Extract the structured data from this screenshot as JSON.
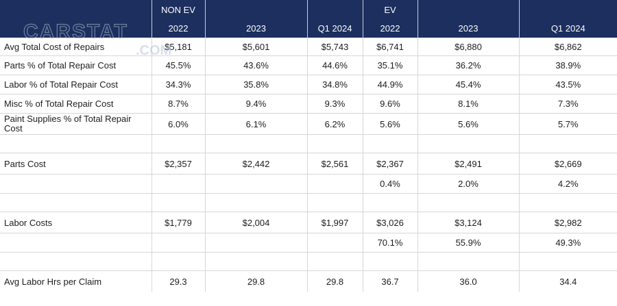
{
  "header": {
    "groups": [
      "",
      "NON EV",
      "",
      "",
      "EV",
      "",
      ""
    ],
    "years": [
      "",
      "2022",
      "2023",
      "Q1 2024",
      "2022",
      "2023",
      "Q1 2024"
    ]
  },
  "watermark": {
    "text": "CARSTAT",
    "sub": ".COM",
    "color": "#b9c3d6"
  },
  "rows": [
    {
      "label": "Avg Total Cost of Repairs",
      "values": [
        "$5,181",
        "$5,601",
        "$5,743",
        "$6,741",
        "$6,880",
        "$6,862"
      ]
    },
    {
      "label": "Parts % of Total Repair Cost",
      "values": [
        "45.5%",
        "43.6%",
        "44.6%",
        "35.1%",
        "36.2%",
        "38.9%"
      ]
    },
    {
      "label": "Labor % of Total Repair Cost",
      "values": [
        "34.3%",
        "35.8%",
        "34.8%",
        "44.9%",
        "45.4%",
        "43.5%"
      ]
    },
    {
      "label": "Misc % of Total Repair Cost",
      "values": [
        "8.7%",
        "9.4%",
        "9.3%",
        "9.6%",
        "8.1%",
        "7.3%"
      ]
    },
    {
      "label": "Paint Supplies % of Total Repair Cost",
      "values": [
        "6.0%",
        "6.1%",
        "6.2%",
        "5.6%",
        "5.6%",
        "5.7%"
      ]
    },
    {
      "label": "",
      "values": [
        "",
        "",
        "",
        "",
        "",
        ""
      ]
    },
    {
      "label": "Parts Cost",
      "values": [
        "$2,357",
        "$2,442",
        "$2,561",
        "$2,367",
        "$2,491",
        "$2,669"
      ]
    },
    {
      "label": "",
      "values": [
        "",
        "",
        "",
        "0.4%",
        "2.0%",
        "4.2%"
      ]
    },
    {
      "label": "",
      "values": [
        "",
        "",
        "",
        "",
        "",
        ""
      ]
    },
    {
      "label": "Labor Costs",
      "values": [
        "$1,779",
        "$2,004",
        "$1,997",
        "$3,026",
        "$3,124",
        "$2,982"
      ]
    },
    {
      "label": "",
      "values": [
        "",
        "",
        "",
        "70.1%",
        "55.9%",
        "49.3%"
      ]
    },
    {
      "label": "",
      "values": [
        "",
        "",
        "",
        "",
        "",
        ""
      ]
    },
    {
      "label": "Avg Labor Hrs per Claim",
      "values": [
        "29.3",
        "29.8",
        "29.8",
        "36.7",
        "36.0",
        "34.4"
      ]
    }
  ]
}
